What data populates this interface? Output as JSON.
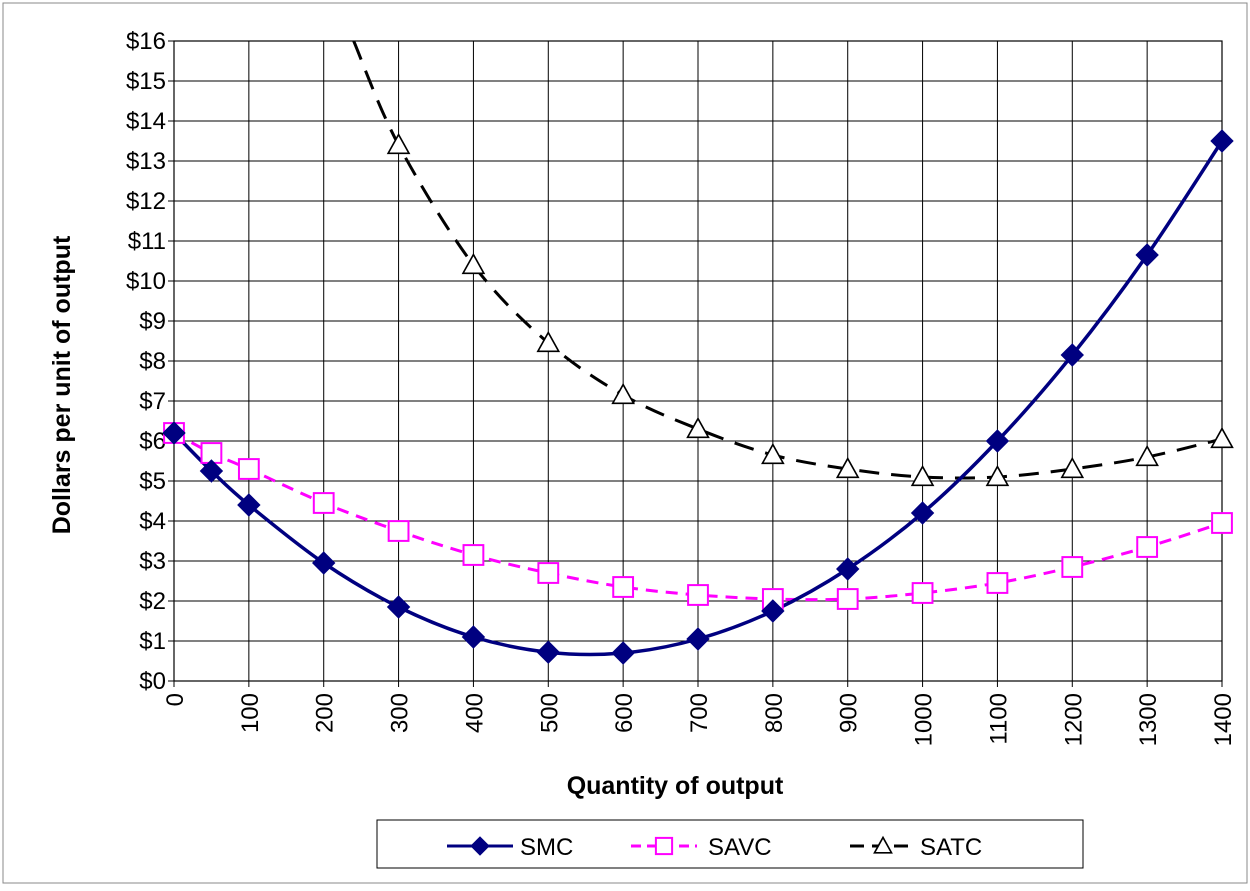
{
  "chart_data": {
    "type": "line",
    "title": "",
    "xlabel": "Quantity of output",
    "ylabel": "Dollars per unit of output",
    "x_ticks": [
      0,
      100,
      200,
      300,
      400,
      500,
      600,
      700,
      800,
      900,
      1000,
      1100,
      1200,
      1300,
      1400
    ],
    "x_tick_labels": [
      "0",
      "100",
      "200",
      "300",
      "400",
      "500",
      "600",
      "700",
      "800",
      "900",
      "1000",
      "1100",
      "1200",
      "1300",
      "1400"
    ],
    "y_ticks": [
      0,
      1,
      2,
      3,
      4,
      5,
      6,
      7,
      8,
      9,
      10,
      11,
      12,
      13,
      14,
      15,
      16
    ],
    "y_tick_labels": [
      "$0",
      "$1",
      "$2",
      "$3",
      "$4",
      "$5",
      "$6",
      "$7",
      "$8",
      "$9",
      "$10",
      "$11",
      "$12",
      "$13",
      "$14",
      "$15",
      "$16"
    ],
    "xlim": [
      0,
      1400
    ],
    "ylim": [
      0,
      16
    ],
    "grid": true,
    "legend_position": "bottom",
    "series": [
      {
        "name": "SMC",
        "color": "#000080",
        "marker": "diamond",
        "line_style": "solid",
        "x": [
          0,
          50,
          100,
          200,
          300,
          400,
          500,
          600,
          700,
          800,
          900,
          1000,
          1100,
          1200,
          1300,
          1400
        ],
        "y": [
          6.2,
          5.25,
          4.4,
          2.95,
          1.85,
          1.1,
          0.72,
          0.7,
          1.05,
          1.75,
          2.8,
          4.2,
          6.0,
          8.15,
          10.65,
          13.5
        ]
      },
      {
        "name": "SAVC",
        "color": "#ff00ff",
        "marker": "square",
        "line_style": "dashed",
        "x": [
          0,
          50,
          100,
          200,
          300,
          400,
          500,
          600,
          700,
          800,
          900,
          1000,
          1100,
          1200,
          1300,
          1400
        ],
        "y": [
          6.2,
          5.7,
          5.3,
          4.45,
          3.75,
          3.15,
          2.7,
          2.35,
          2.15,
          2.05,
          2.05,
          2.2,
          2.45,
          2.85,
          3.35,
          3.95
        ]
      },
      {
        "name": "SATC",
        "color": "#000000",
        "marker": "triangle",
        "line_style": "dashed",
        "x": [
          240,
          300,
          400,
          500,
          600,
          700,
          800,
          900,
          1000,
          1100,
          1200,
          1300,
          1400
        ],
        "y": [
          16.0,
          13.4,
          10.4,
          8.45,
          7.15,
          6.3,
          5.65,
          5.3,
          5.1,
          5.1,
          5.3,
          5.6,
          6.05
        ],
        "marker_x": [
          300,
          400,
          500,
          600,
          700,
          800,
          900,
          1000,
          1100,
          1200,
          1300,
          1400
        ]
      }
    ]
  }
}
